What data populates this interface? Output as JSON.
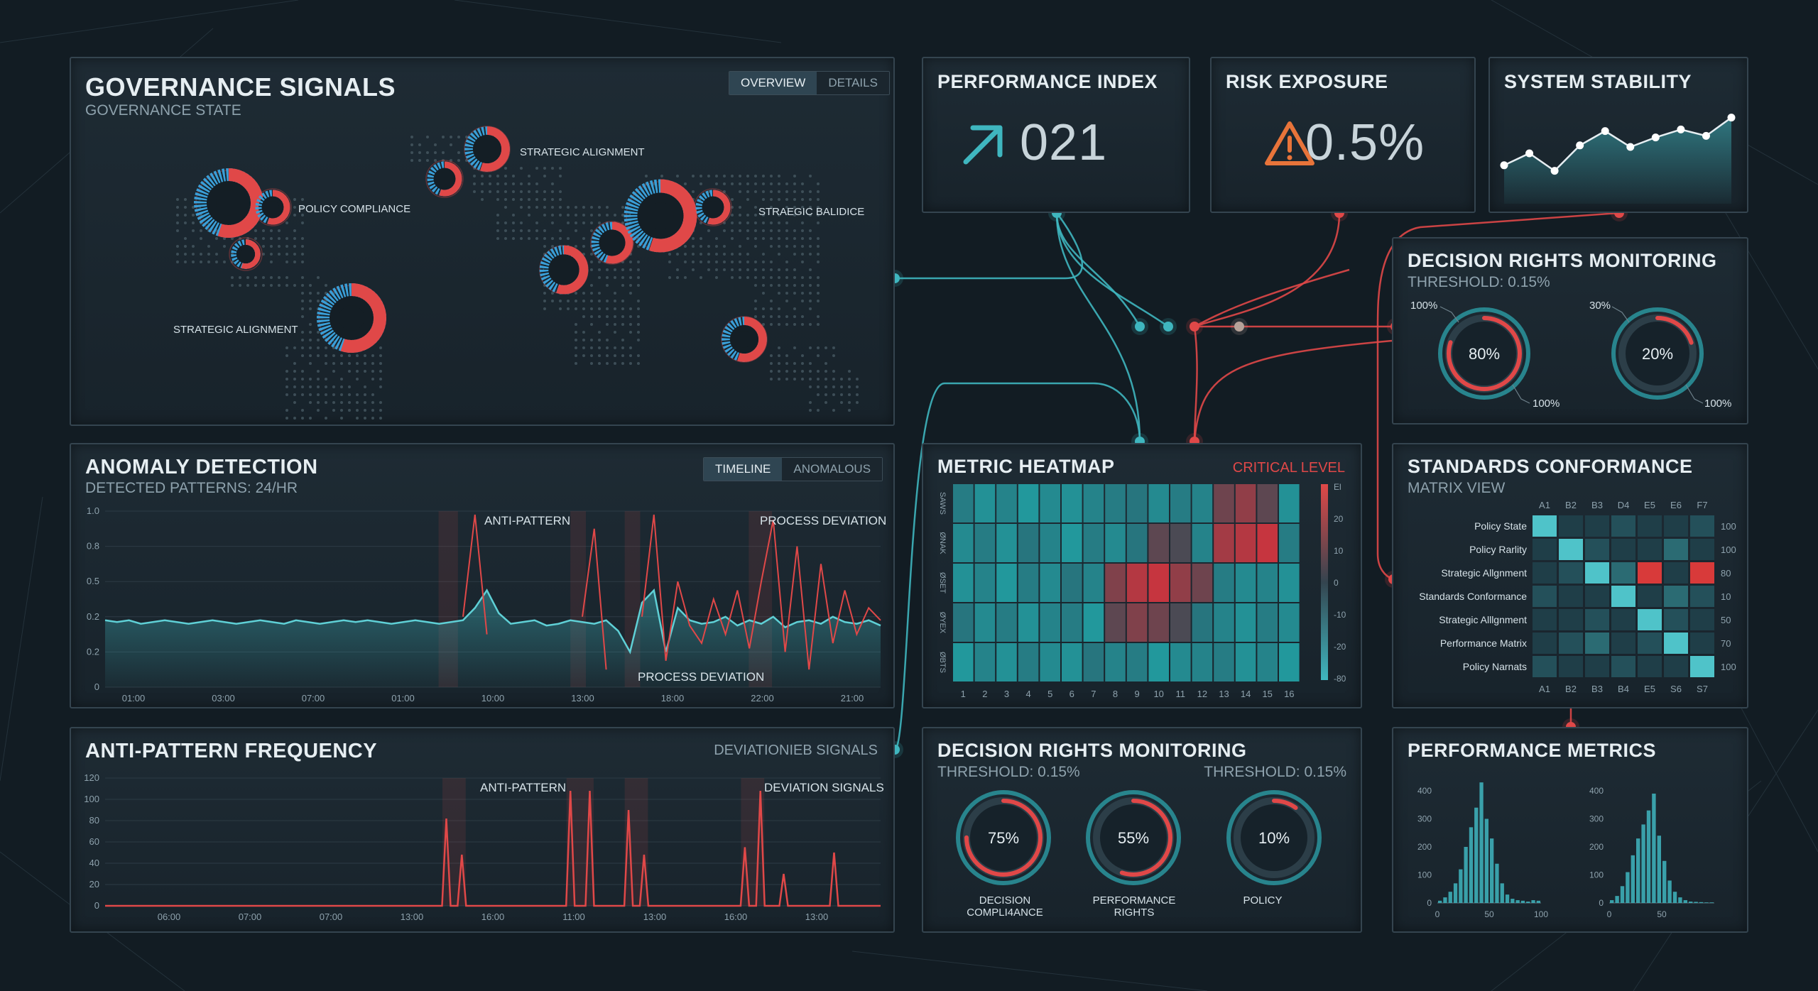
{
  "colors": {
    "teal": "#3fb6bf",
    "red": "#e04848",
    "panel": "#1b272f",
    "border": "#34444f",
    "text": "#e6eef2",
    "muted": "#8ea2ad"
  },
  "governance": {
    "title": "GOVERNANCE SIGNALS",
    "subtitle": "GOVERNANCE STATE",
    "tabs": [
      {
        "label": "OVERVIEW",
        "active": true
      },
      {
        "label": "DETAILS",
        "active": false
      }
    ],
    "labels": [
      "STRATEGIC ALIGNMENT",
      "POLICY COMPLIANCE",
      "STRAEGIC BALIDICE",
      "STRATEGIC ALIGNMENT"
    ]
  },
  "performance_index": {
    "title": "PERFORMANCE INDEX",
    "value": "021",
    "icon": "arrow-up-right-icon"
  },
  "risk_exposure": {
    "title": "RISK EXPOSURE",
    "value": "0.5%",
    "icon": "warning-triangle-icon"
  },
  "system_stability": {
    "title": "SYSTEM STABILITY",
    "values": [
      0.35,
      0.5,
      0.28,
      0.6,
      0.78,
      0.58,
      0.7,
      0.8,
      0.72,
      0.95
    ]
  },
  "drm_top": {
    "title": "DECISION RIGHTS MONITORING",
    "subtitle": "THRESHOLD: 0.15%",
    "gauges": [
      {
        "value": "80%",
        "frac": 0.8,
        "tl": "100%",
        "br": "100%"
      },
      {
        "value": "20%",
        "frac": 0.2,
        "tl": "30%",
        "br": "100%"
      }
    ]
  },
  "anomaly": {
    "title": "ANOMALY DETECTION",
    "subtitle": "DETECTED PATTERNS: 24/HR",
    "tabs": [
      {
        "label": "TIMELINE",
        "active": true
      },
      {
        "label": "ANOMALOUS",
        "active": false
      }
    ],
    "annotations": [
      "ANTI-PATTERN",
      "PROCESS DEVIATION",
      "PROCESS DEVIATION"
    ],
    "chart_data": {
      "type": "line",
      "y_ticks": [
        "1.0",
        "0.8",
        "0.5",
        "0.2",
        "0.2",
        "0"
      ],
      "x_ticks": [
        "01:00",
        "03:00",
        "07:00",
        "01:00",
        "10:00",
        "13:00",
        "18:00",
        "22:00",
        "21:00"
      ],
      "ylim": [
        0,
        1
      ],
      "series": [
        {
          "values": [
            0.38,
            0.37,
            0.38,
            0.36,
            0.37,
            0.38,
            0.37,
            0.36,
            0.37,
            0.38,
            0.37,
            0.36,
            0.37,
            0.38,
            0.37,
            0.36,
            0.38,
            0.37,
            0.36,
            0.37,
            0.38,
            0.37,
            0.38,
            0.37,
            0.36,
            0.37,
            0.38,
            0.37,
            0.36,
            0.37,
            0.38,
            0.45,
            0.55,
            0.42,
            0.36,
            0.37,
            0.38,
            0.35,
            0.36,
            0.38,
            0.37,
            0.36,
            0.38,
            0.32,
            0.2,
            0.48,
            0.55,
            0.2,
            0.45,
            0.38,
            0.36,
            0.37,
            0.4,
            0.35,
            0.38,
            0.36,
            0.4,
            0.34,
            0.37,
            0.38,
            0.36,
            0.4,
            0.37,
            0.36,
            0.38,
            0.35
          ]
        },
        {
          "values": [
            null,
            null,
            null,
            null,
            null,
            null,
            null,
            null,
            null,
            null,
            null,
            null,
            null,
            null,
            null,
            null,
            null,
            null,
            null,
            null,
            null,
            null,
            null,
            null,
            null,
            null,
            null,
            null,
            null,
            null,
            0.4,
            0.98,
            0.3,
            null,
            null,
            null,
            null,
            null,
            null,
            null,
            0.4,
            0.9,
            0.1,
            null,
            null,
            0.4,
            0.98,
            0.15,
            0.6,
            0.35,
            0.25,
            0.5,
            0.3,
            0.55,
            0.22,
            0.6,
            0.95,
            0.2,
            0.8,
            0.1,
            0.7,
            0.25,
            0.55,
            0.3,
            0.45,
            0.38
          ]
        }
      ]
    }
  },
  "heatmap": {
    "title": "METRIC HEATMAP",
    "critical": "CRITICAL LEVEL",
    "row_labels": [
      "SAWS",
      "ØNAK",
      "ØSET",
      "ØYEX",
      "ØBTS"
    ],
    "col_labels": [
      "1",
      "2",
      "3",
      "4",
      "5",
      "6",
      "7",
      "8",
      "9",
      "10",
      "11",
      "12",
      "13",
      "14",
      "15",
      "16"
    ],
    "scale": [
      "El",
      "20",
      "10",
      "0",
      "-10",
      "-20",
      "-80"
    ],
    "chart_data": {
      "type": "heatmap",
      "values": [
        [
          -0.2,
          -0.5,
          -0.3,
          -0.6,
          -0.4,
          -0.5,
          -0.3,
          -0.2,
          -0.1,
          -0.4,
          -0.2,
          -0.3,
          0.4,
          0.6,
          0.3,
          -0.5
        ],
        [
          -0.4,
          -0.2,
          -0.5,
          -0.1,
          -0.3,
          -0.6,
          -0.2,
          -0.4,
          -0.1,
          0.3,
          0.2,
          -0.3,
          0.7,
          0.8,
          0.9,
          -0.2
        ],
        [
          -0.5,
          -0.3,
          -0.6,
          -0.2,
          -0.4,
          -0.1,
          -0.3,
          0.5,
          0.8,
          0.9,
          0.6,
          0.4,
          -0.2,
          -0.4,
          -0.3,
          -0.5
        ],
        [
          -0.1,
          -0.4,
          -0.2,
          -0.5,
          -0.3,
          -0.2,
          -0.6,
          0.3,
          0.5,
          0.4,
          0.2,
          -0.1,
          -0.3,
          -0.5,
          -0.2,
          -0.4
        ],
        [
          -0.6,
          -0.3,
          -0.5,
          -0.2,
          -0.4,
          -0.5,
          -0.1,
          -0.3,
          -0.2,
          -0.6,
          -0.4,
          -0.3,
          -0.2,
          -0.5,
          -0.3,
          -0.6
        ]
      ]
    }
  },
  "standards": {
    "title": "STANDARDS CONFORMANCE",
    "subtitle": "MATRIX VIEW",
    "cols_top": [
      "A1",
      "B2",
      "B3",
      "D4",
      "E5",
      "E6",
      "F7"
    ],
    "cols_bottom": [
      "A1",
      "B2",
      "B3",
      "B4",
      "E5",
      "S6",
      "S7"
    ],
    "rows": [
      {
        "label": "Policy State",
        "right": "100"
      },
      {
        "label": "Policy Rarlity",
        "right": "100"
      },
      {
        "label": "Strategic Allgnment",
        "right": "80"
      },
      {
        "label": "Standards Conformance",
        "right": "10"
      },
      {
        "label": "Strategic Alllgnment",
        "right": "50"
      },
      {
        "label": "Performance Matrix",
        "right": "70"
      },
      {
        "label": "Policy Narnats",
        "right": "100"
      }
    ],
    "cells": [
      [
        3,
        0,
        0,
        0,
        0,
        0,
        0
      ],
      [
        0,
        3,
        0,
        0,
        0,
        1,
        0
      ],
      [
        0,
        0,
        3,
        1,
        4,
        0,
        4
      ],
      [
        0,
        0,
        0,
        3,
        0,
        1,
        0
      ],
      [
        0,
        0,
        0,
        0,
        3,
        0,
        0
      ],
      [
        0,
        0,
        1,
        0,
        0,
        3,
        0
      ],
      [
        0,
        0,
        0,
        0,
        0,
        0,
        3
      ]
    ]
  },
  "anti_pattern": {
    "title": "ANTI-PATTERN FREQUENCY",
    "right": "DEVIATIONIEB SIGNALS",
    "annotations": [
      "ANTI-PATTERN",
      "DEVIATION SIGNALS"
    ],
    "chart_data": {
      "type": "line",
      "y_ticks": [
        "120",
        "100",
        "80",
        "60",
        "40",
        "20",
        "0"
      ],
      "x_ticks": [
        "06:00",
        "07:00",
        "07:00",
        "13:00",
        "16:00",
        "11:00",
        "13:00",
        "16:00",
        "13:00"
      ],
      "ylim": [
        0,
        120
      ],
      "spikes": [
        {
          "x": 0.44,
          "y": 82
        },
        {
          "x": 0.46,
          "y": 48
        },
        {
          "x": 0.6,
          "y": 108
        },
        {
          "x": 0.625,
          "y": 108
        },
        {
          "x": 0.675,
          "y": 90
        },
        {
          "x": 0.695,
          "y": 48
        },
        {
          "x": 0.825,
          "y": 55
        },
        {
          "x": 0.845,
          "y": 108
        },
        {
          "x": 0.875,
          "y": 30
        },
        {
          "x": 0.94,
          "y": 50
        }
      ]
    }
  },
  "drm_bottom": {
    "title": "DECISION RIGHTS MONITORING",
    "subtitle": "THRESHOLD: 0.15%",
    "subtitle_right": "THRESHOLD: 0.15%",
    "gauges": [
      {
        "value": "75%",
        "frac": 0.75,
        "label": "DECISION COMPLI4ANCE"
      },
      {
        "value": "55%",
        "frac": 0.55,
        "label": "PERFORMANCE RIGHTS"
      },
      {
        "value": "10%",
        "frac": 0.1,
        "label": "POLICY"
      }
    ]
  },
  "perf_metrics": {
    "title": "PERFORMANCE METRICS",
    "charts": [
      {
        "y_ticks": [
          "400",
          "300",
          "200",
          "100",
          "0"
        ],
        "x_ticks": [
          "0",
          "50",
          "100"
        ],
        "values": [
          8,
          20,
          40,
          70,
          120,
          200,
          270,
          340,
          430,
          300,
          230,
          140,
          70,
          30,
          15,
          10,
          8,
          5,
          10,
          8
        ]
      },
      {
        "y_ticks": [
          "400",
          "300",
          "200",
          "100",
          "0"
        ],
        "x_ticks": [
          "0",
          "50"
        ],
        "values": [
          10,
          25,
          60,
          110,
          170,
          230,
          280,
          330,
          390,
          240,
          150,
          80,
          40,
          20,
          10,
          5,
          4,
          3,
          2,
          2
        ]
      }
    ]
  }
}
